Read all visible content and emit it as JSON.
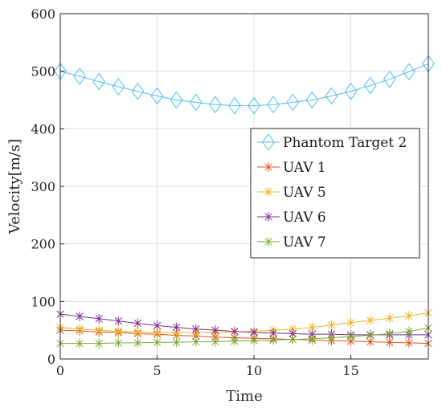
{
  "chart_data": {
    "type": "line",
    "title": "",
    "xlabel": "Time",
    "ylabel": "Velocity[m/s]",
    "xlim": [
      0,
      19
    ],
    "ylim": [
      0,
      600
    ],
    "xticks": [
      0,
      5,
      10,
      15
    ],
    "yticks": [
      0,
      100,
      200,
      300,
      400,
      500,
      600
    ],
    "grid": true,
    "legend_position": "right",
    "x": [
      0,
      1,
      2,
      3,
      4,
      5,
      6,
      7,
      8,
      9,
      10,
      11,
      12,
      13,
      14,
      15,
      16,
      17,
      18,
      19
    ],
    "series": [
      {
        "name": "Phantom Target 2",
        "color": "#4DBEEE",
        "marker": "diamond",
        "values": [
          500,
          491,
          482,
          473,
          465,
          457,
          450,
          446,
          442,
          440,
          440,
          442,
          446,
          450,
          457,
          465,
          475,
          486,
          499,
          513
        ]
      },
      {
        "name": "UAV 1",
        "color": "#D95319",
        "marker": "asterisk",
        "values": [
          50,
          49,
          47,
          46,
          44,
          43,
          41,
          40,
          38,
          37,
          36,
          35,
          34,
          33,
          32,
          31,
          30,
          29,
          28,
          27
        ]
      },
      {
        "name": "UAV 5",
        "color": "#EDB120",
        "marker": "asterisk",
        "values": [
          55,
          52,
          50,
          48,
          47,
          46,
          46,
          46,
          46,
          47,
          48,
          50,
          52,
          55,
          59,
          63,
          67,
          71,
          75,
          80
        ]
      },
      {
        "name": "UAV 6",
        "color": "#7E2F8E",
        "marker": "asterisk",
        "values": [
          78,
          74,
          70,
          66,
          62,
          58,
          55,
          52,
          50,
          48,
          46,
          45,
          44,
          43,
          43,
          42,
          42,
          42,
          42,
          42
        ]
      },
      {
        "name": "UAV 7",
        "color": "#77AC30",
        "marker": "asterisk",
        "values": [
          27,
          27,
          27,
          28,
          28,
          29,
          29,
          30,
          30,
          31,
          32,
          33,
          34,
          35,
          37,
          39,
          41,
          44,
          48,
          54
        ]
      }
    ]
  }
}
